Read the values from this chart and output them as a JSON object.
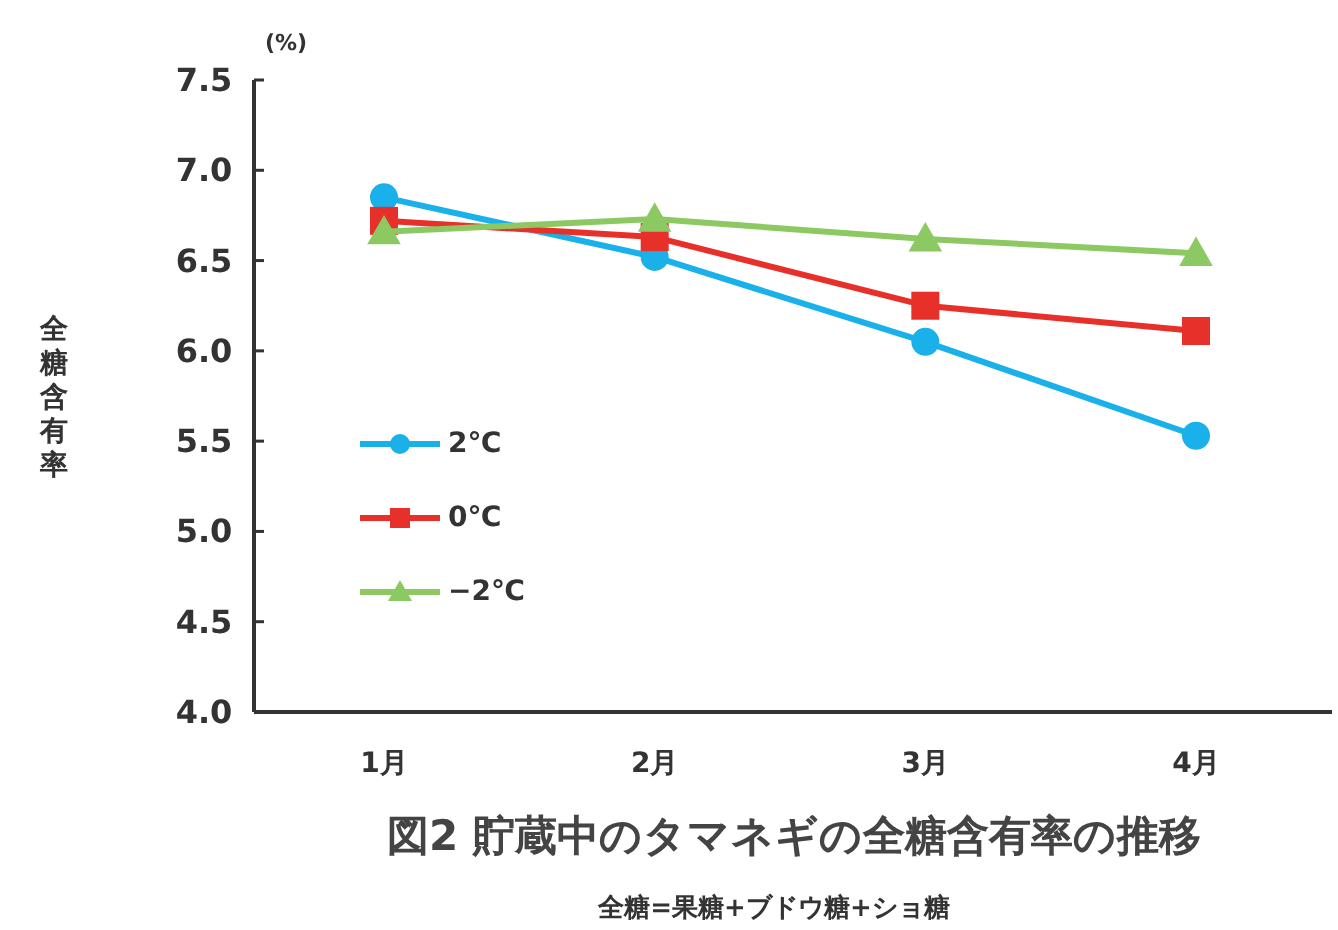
{
  "chart_data": {
    "type": "line",
    "title": "図2  貯蔵中のタマネギの全糖含有率の推移",
    "subtitle": "全糖=果糖+ブドウ糖+ショ糖",
    "ylabel": "全糖含有率",
    "annotations": [
      "(%)"
    ],
    "categories": [
      "1月",
      "2月",
      "3月",
      "4月"
    ],
    "series": [
      {
        "name": "2℃",
        "color": "#1ab0ea",
        "marker": "circle",
        "values": [
          6.85,
          6.52,
          6.05,
          5.53
        ]
      },
      {
        "name": "0℃",
        "color": "#e8302a",
        "marker": "square",
        "values": [
          6.72,
          6.63,
          6.25,
          6.11
        ]
      },
      {
        "name": "−2℃",
        "color": "#8cc963",
        "marker": "triangle",
        "values": [
          6.66,
          6.73,
          6.62,
          6.54
        ]
      }
    ],
    "ylim": [
      4.0,
      7.5
    ],
    "yticks": [
      {
        "value": 4.0,
        "label": "4.0"
      },
      {
        "value": 4.5,
        "label": "4.5"
      },
      {
        "value": 5.0,
        "label": "5.0"
      },
      {
        "value": 5.5,
        "label": "5.5"
      },
      {
        "value": 6.0,
        "label": "6.0"
      },
      {
        "value": 6.5,
        "label": "6.5"
      },
      {
        "value": 7.0,
        "label": "7.0"
      },
      {
        "value": 7.5,
        "label": "7.5"
      }
    ],
    "grid": false,
    "legend": "left",
    "line_style": "solid"
  }
}
